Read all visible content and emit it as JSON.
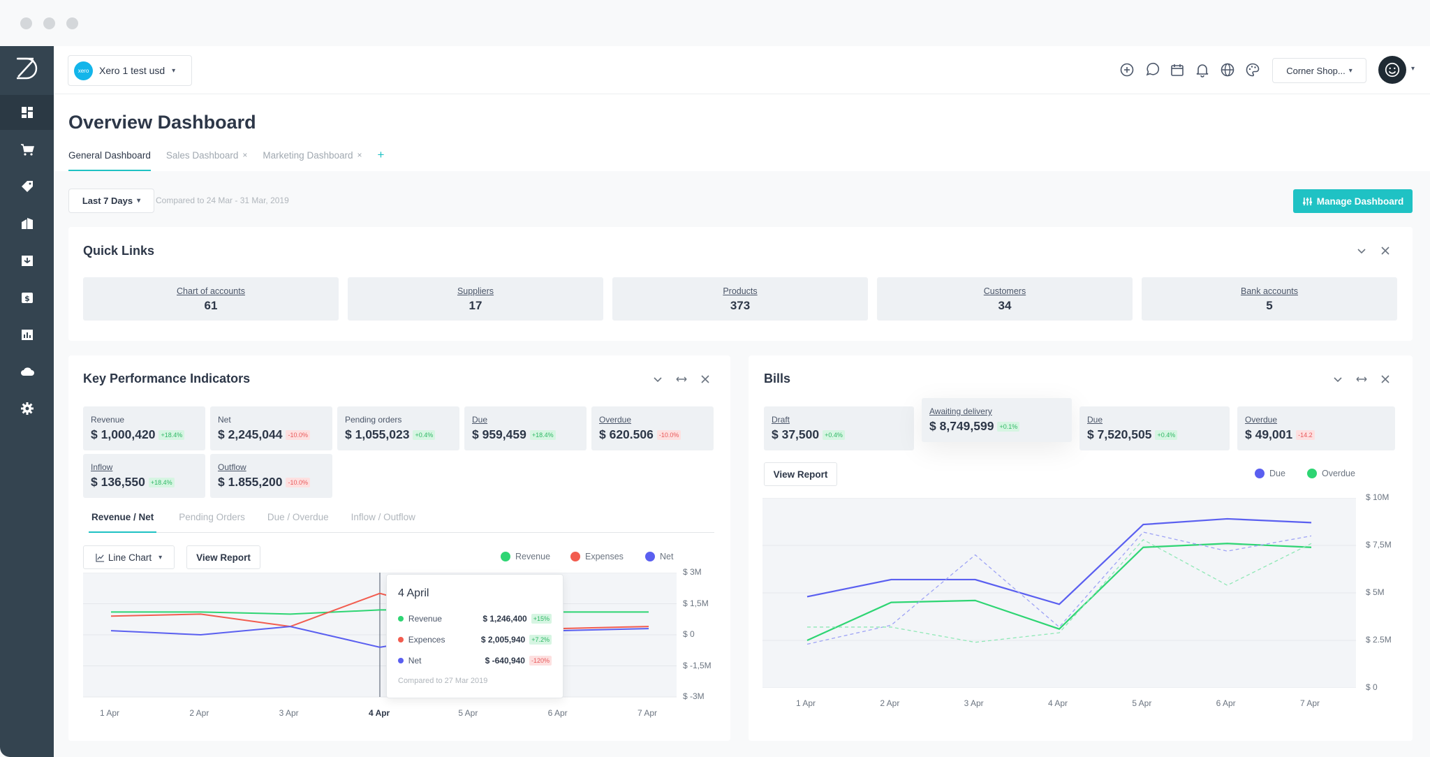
{
  "org": {
    "name": "Xero 1 test usd",
    "badge": "xero"
  },
  "shop": {
    "name": "Corner Shop..."
  },
  "page": {
    "title": "Overview Dashboard"
  },
  "tabs": [
    {
      "label": "General Dashboard",
      "active": true
    },
    {
      "label": "Sales Dashboard",
      "closable": true
    },
    {
      "label": "Marketing Dashboard",
      "closable": true
    }
  ],
  "tab_add": "+",
  "tab_close": "×",
  "filter": {
    "range": "Last 7 Days",
    "compare": "Compared to 24 Mar - 31 Mar, 2019"
  },
  "manage_button": "Manage Dashboard",
  "quick_links": {
    "title": "Quick Links",
    "items": [
      {
        "label": "Chart of accounts",
        "value": "61"
      },
      {
        "label": "Suppliers",
        "value": "17"
      },
      {
        "label": "Products",
        "value": "373"
      },
      {
        "label": "Customers",
        "value": "34"
      },
      {
        "label": "Bank accounts",
        "value": "5"
      }
    ]
  },
  "kpi": {
    "title": "Key Performance Indicators",
    "items": [
      {
        "label": "Revenue",
        "value": "$ 1,000,420",
        "change": "+18.4%",
        "dir": "up"
      },
      {
        "label": "Net",
        "value": "$ 2,245,044",
        "change": "-10.0%",
        "dir": "down"
      },
      {
        "label": "Pending orders",
        "value": "$ 1,055,023",
        "change": "+0.4%",
        "dir": "up"
      },
      {
        "label": "Due",
        "value": "$ 959,459",
        "change": "+18.4%",
        "dir": "up"
      },
      {
        "label": "Overdue",
        "value": "$ 620.506",
        "change": "-10.0%",
        "dir": "down"
      },
      {
        "label": "Inflow",
        "value": "$ 136,550",
        "change": "+18.4%",
        "dir": "up"
      },
      {
        "label": "Outflow",
        "value": "$ 1.855,200",
        "change": "-10.0%",
        "dir": "down"
      }
    ],
    "subtabs": [
      "Revenue / Net",
      "Pending Orders",
      "Due / Overdue",
      "Inflow / Outflow"
    ],
    "chart_type": "Line Chart",
    "view_report": "View Report",
    "legend": [
      {
        "name": "Revenue",
        "color": "#2ed573"
      },
      {
        "name": "Expenses",
        "color": "#f25c4f"
      },
      {
        "name": "Net",
        "color": "#5a5ff0"
      }
    ],
    "tooltip": {
      "title": "4 April",
      "rows": [
        {
          "name": "Revenue",
          "value": "$ 1,246,400",
          "change": "+15%",
          "dir": "up",
          "color": "#2ed573"
        },
        {
          "name": "Expences",
          "value": "$ 2,005,940",
          "change": "+7.2%",
          "dir": "up",
          "color": "#f25c4f"
        },
        {
          "name": "Net",
          "value": "$ -640,940",
          "change": "-120%",
          "dir": "down",
          "color": "#5a5ff0"
        }
      ],
      "footer": "Compared to 27 Mar 2019"
    }
  },
  "bills": {
    "title": "Bills",
    "items": [
      {
        "label": "Draft",
        "value": "$ 37,500",
        "change": "+0.4%",
        "dir": "up"
      },
      {
        "label": "Awaiting delivery",
        "value": "$ 8,749,599",
        "change": "+0.1%",
        "dir": "up"
      },
      {
        "label": "Due",
        "value": "$ 7,520,505",
        "change": "+0.4%",
        "dir": "up"
      },
      {
        "label": "Overdue",
        "value": "$ 49,001",
        "change": "-14.2",
        "dir": "down"
      }
    ],
    "view_report": "View Report",
    "legend": [
      {
        "name": "Due",
        "color": "#5a5ff0"
      },
      {
        "name": "Overdue",
        "color": "#2ed573"
      }
    ]
  },
  "chart_data": [
    {
      "type": "line",
      "x": [
        "1 Apr",
        "2 Apr",
        "3 Apr",
        "4 Apr",
        "5 Apr",
        "6 Apr",
        "7 Apr"
      ],
      "ytick_labels": [
        "$ 3M",
        "$ 1,5M",
        "$ 0",
        "$ -1,5M",
        "$ -3M"
      ],
      "ylim": [
        -3,
        3
      ],
      "y_unit": "M",
      "highlight_x": "4 Apr",
      "series": [
        {
          "name": "Revenue",
          "color": "#2ed573",
          "values": [
            1.1,
            1.1,
            1.0,
            1.2,
            1.2,
            1.1,
            1.1
          ]
        },
        {
          "name": "Expenses",
          "color": "#f25c4f",
          "values": [
            0.9,
            1.0,
            0.4,
            2.0,
            0.8,
            0.3,
            0.4
          ]
        },
        {
          "name": "Net",
          "color": "#5a5ff0",
          "values": [
            0.2,
            0.0,
            0.4,
            -0.6,
            0.1,
            0.2,
            0.3
          ]
        }
      ]
    },
    {
      "type": "line",
      "x": [
        "1 Apr",
        "2 Apr",
        "3 Apr",
        "4 Apr",
        "5 Apr",
        "6 Apr",
        "7 Apr"
      ],
      "ytick_labels": [
        "$ 10M",
        "$ 7,5M",
        "$ 5M",
        "$ 2.5M",
        "$ 0"
      ],
      "ylim": [
        0,
        10
      ],
      "y_unit": "M",
      "series": [
        {
          "name": "Due",
          "color": "#5a5ff0",
          "values": [
            4.8,
            5.7,
            5.7,
            4.4,
            8.6,
            8.9,
            8.7
          ]
        },
        {
          "name": "Overdue",
          "color": "#2ed573",
          "values": [
            2.5,
            4.5,
            4.6,
            3.1,
            7.4,
            7.6,
            7.4
          ]
        },
        {
          "name": "Due (previous)",
          "color": "#9ea3f5",
          "dashed": true,
          "values": [
            2.3,
            3.3,
            7.0,
            3.2,
            8.2,
            7.2,
            8.0
          ]
        },
        {
          "name": "Overdue (previous)",
          "color": "#8fe8b6",
          "dashed": true,
          "values": [
            3.2,
            3.2,
            2.4,
            2.9,
            7.8,
            5.4,
            7.6
          ]
        }
      ]
    }
  ]
}
